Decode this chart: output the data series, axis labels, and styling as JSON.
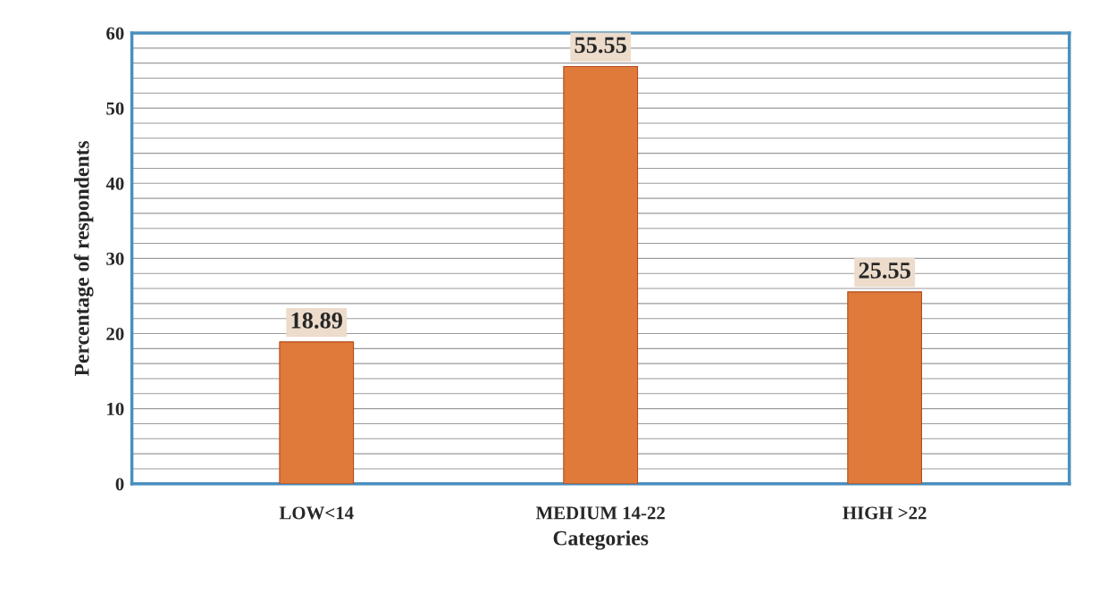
{
  "chart_data": {
    "type": "bar",
    "xlabel": "Categories",
    "ylabel": "Percentage of respondents",
    "categories": [
      "LOW<14",
      "MEDIUM 14-22",
      "HIGH >22"
    ],
    "values": [
      18.89,
      55.55,
      25.55
    ],
    "color": "#e07a3a",
    "ylim": [
      0,
      60
    ],
    "yticks": [
      0,
      {
        "value": 2,
        "label": null
      },
      {
        "value": 4,
        "label": null
      },
      {
        "value": 6,
        "label": null
      },
      {
        "value": 8,
        "label": null
      },
      10,
      {
        "value": 12,
        "label": null
      },
      {
        "value": 14,
        "label": null
      },
      {
        "value": 16,
        "label": null
      },
      {
        "value": 18,
        "label": null
      },
      20,
      {
        "value": 22,
        "label": null
      },
      {
        "value": 24,
        "label": null
      },
      {
        "value": 26,
        "label": null
      },
      {
        "value": 28,
        "label": null
      },
      30,
      {
        "value": 32,
        "label": null
      },
      {
        "value": 34,
        "label": null
      },
      {
        "value": 36,
        "label": null
      },
      {
        "value": 38,
        "label": null
      },
      40,
      {
        "value": 42,
        "label": null
      },
      {
        "value": 44,
        "label": null
      },
      {
        "value": 46,
        "label": null
      },
      {
        "value": 48,
        "label": null
      },
      50,
      {
        "value": 52,
        "label": null
      },
      {
        "value": 54,
        "label": null
      },
      {
        "value": 56,
        "label": null
      },
      {
        "value": 58,
        "label": null
      },
      60
    ],
    "grid": "y",
    "data_labels": true
  }
}
